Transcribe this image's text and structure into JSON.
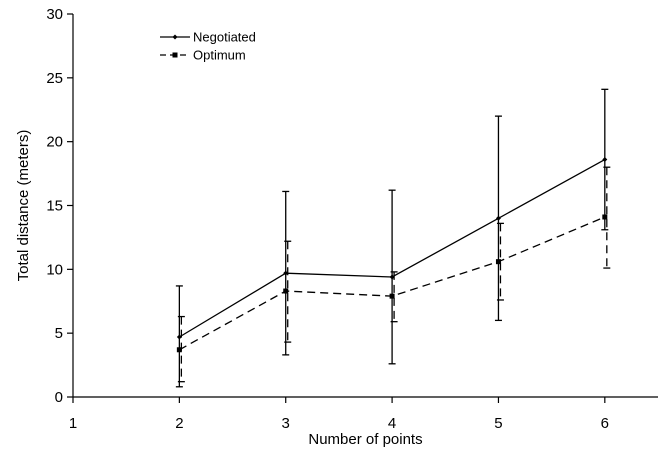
{
  "chart_data": {
    "type": "line",
    "title": "",
    "xlabel": "Number of points",
    "ylabel": "Total distance (meters)",
    "xlim": [
      1,
      6.5
    ],
    "ylim": [
      0,
      30
    ],
    "x_ticks": [
      1,
      2,
      3,
      4,
      5,
      6
    ],
    "y_ticks": [
      0,
      5,
      10,
      15,
      20,
      25,
      30
    ],
    "grid": false,
    "legend_position": "top-left",
    "x": [
      2,
      3,
      4,
      5,
      6
    ],
    "series": [
      {
        "name": "Negotiated",
        "line_style": "solid",
        "marker": "diamond",
        "values": [
          4.7,
          9.7,
          9.4,
          14.0,
          18.6
        ],
        "error_low": [
          0.8,
          3.3,
          2.6,
          6.0,
          13.1
        ],
        "error_high": [
          8.7,
          16.1,
          16.2,
          22.0,
          24.1
        ]
      },
      {
        "name": "Optimum",
        "line_style": "dashed",
        "marker": "square",
        "values": [
          3.7,
          8.3,
          7.9,
          10.6,
          14.1
        ],
        "error_low": [
          1.2,
          4.3,
          5.9,
          7.6,
          10.1
        ],
        "error_high": [
          6.3,
          12.2,
          9.8,
          13.6,
          18.0
        ]
      }
    ]
  }
}
